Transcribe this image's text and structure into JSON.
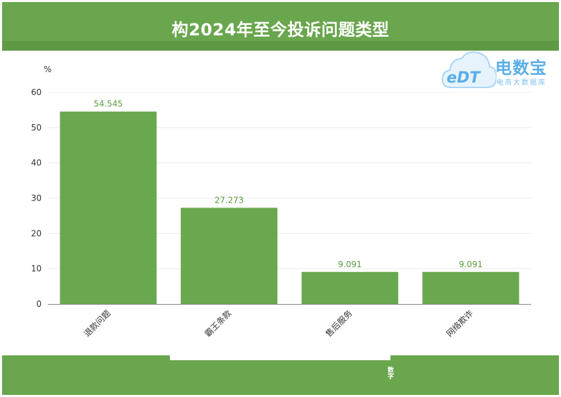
{
  "page": {
    "title": "构2024年至今投诉问题类型",
    "footer_text": "数字"
  },
  "watermark": {
    "logo_text": "eDT",
    "name": "电数宝",
    "subtitle": "电商大数据库"
  },
  "colors": {
    "accent": "#69a64d",
    "bar": "#6aa84f",
    "label": "#5a9a3c",
    "watermark": "#5aaee6"
  },
  "chart_data": {
    "type": "bar",
    "ylabel": "%",
    "ylim": [
      0,
      60
    ],
    "yticks": [
      0,
      10,
      20,
      30,
      40,
      50,
      60
    ],
    "grid": true,
    "categories": [
      "退款问题",
      "霸王条款",
      "售后服务",
      "网络欺诈"
    ],
    "values": [
      54.545,
      27.273,
      9.091,
      9.091
    ],
    "value_labels": [
      "54.545",
      "27.273",
      "9.091",
      "9.091"
    ]
  }
}
